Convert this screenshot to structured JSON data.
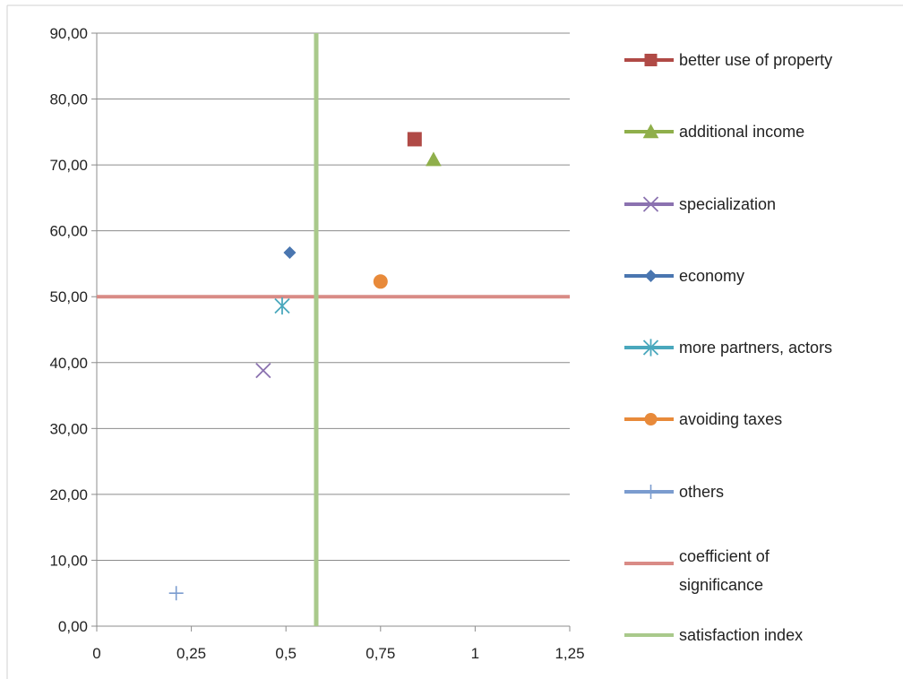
{
  "chart_data": {
    "type": "scatter",
    "title": "",
    "xlabel": "",
    "ylabel": "",
    "xlim": [
      0,
      1.25
    ],
    "ylim": [
      0,
      90
    ],
    "x_tick_labels": [
      "0",
      "0,25",
      "0,5",
      "0,75",
      "1",
      "1,25"
    ],
    "x_tick_values": [
      0,
      0.25,
      0.5,
      0.75,
      1,
      1.25
    ],
    "y_tick_labels": [
      "0,00",
      "10,00",
      "20,00",
      "30,00",
      "40,00",
      "50,00",
      "60,00",
      "70,00",
      "80,00",
      "90,00"
    ],
    "y_tick_values": [
      0,
      10,
      20,
      30,
      40,
      50,
      60,
      70,
      80,
      90
    ],
    "grid": "horizontal",
    "legend_position": "right",
    "series": [
      {
        "name": "better use of property",
        "x": 0.84,
        "y": 73.9,
        "marker": "square",
        "color": "#b04a46"
      },
      {
        "name": "additional income",
        "x": 0.89,
        "y": 70.8,
        "marker": "triangle",
        "color": "#8faf4b"
      },
      {
        "name": "specialization",
        "x": 0.44,
        "y": 38.8,
        "marker": "x",
        "color": "#8b72b0"
      },
      {
        "name": "economy",
        "x": 0.51,
        "y": 56.7,
        "marker": "diamond",
        "color": "#4a76b0"
      },
      {
        "name": "more partners, actors",
        "x": 0.49,
        "y": 48.6,
        "marker": "asterisk",
        "color": "#4aa8bd"
      },
      {
        "name": "avoiding taxes",
        "x": 0.75,
        "y": 52.3,
        "marker": "circle",
        "color": "#e88a3a"
      },
      {
        "name": "others",
        "x": 0.21,
        "y": 5.0,
        "marker": "plus",
        "color": "#7b9ccf"
      }
    ],
    "reference_lines": [
      {
        "name": "coefficient of significance",
        "orientation": "horizontal",
        "value": 50,
        "color": "#d98b86"
      },
      {
        "name": "satisfaction index",
        "orientation": "vertical",
        "value": 0.58,
        "color": "#a9c98b"
      }
    ]
  }
}
